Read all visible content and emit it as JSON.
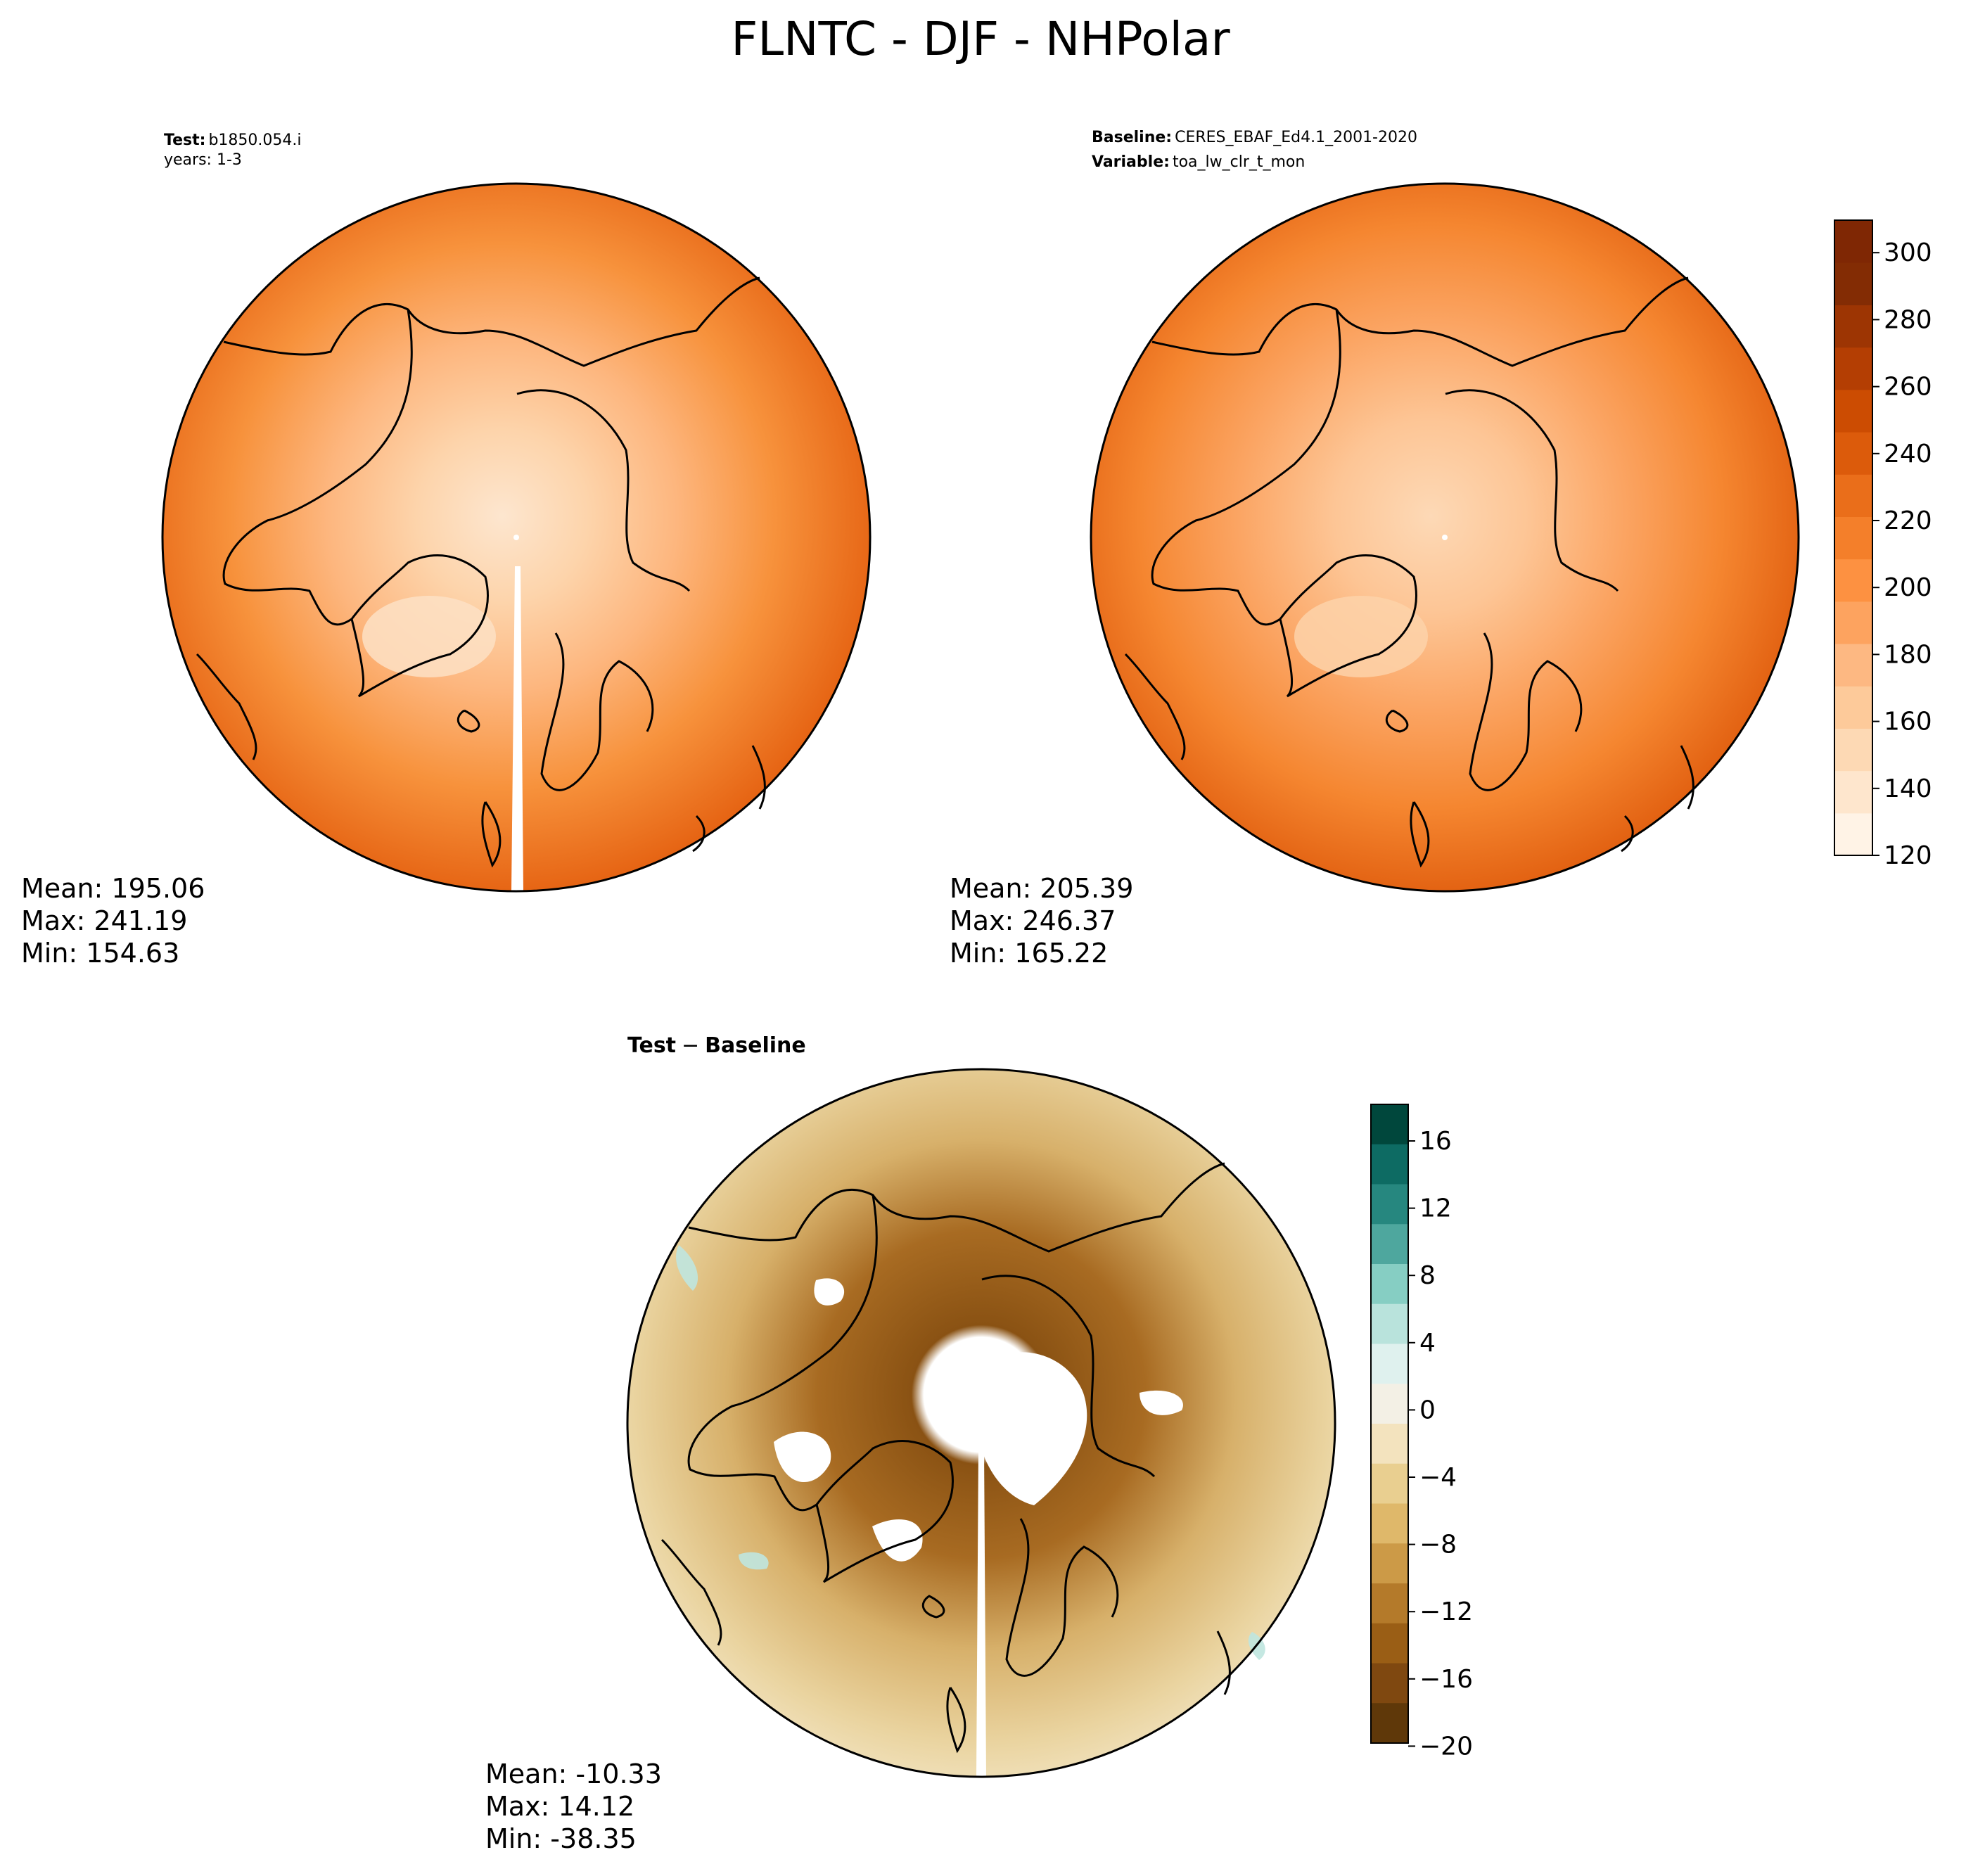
{
  "title": "FLNTC - DJF - NHPolar",
  "panels": {
    "test": {
      "header_key": "Test",
      "header_value": "b1850.054.i",
      "header_line2": "years: 1-3",
      "stats": {
        "mean": "Mean: 195.06",
        "max": "Max: 241.19",
        "min": "Min: 154.63"
      }
    },
    "baseline": {
      "header_key": "Baseline",
      "header_value": "CERES_EBAF_Ed4.1_2001-2020",
      "header2_key": "Variable",
      "header2_value": "toa_lw_clr_t_mon",
      "stats": {
        "mean": "Mean: 205.39",
        "max": "Max: 246.37",
        "min": "Min: 165.22"
      }
    },
    "diff": {
      "header_test": "Test",
      "header_minus": "−",
      "header_baseline": "Baseline",
      "stats": {
        "mean": "Mean: -10.33",
        "max": "Max: 14.12",
        "min": "Min: -38.35"
      }
    }
  },
  "colorbars": {
    "main": {
      "ticks": [
        "120",
        "140",
        "160",
        "180",
        "200",
        "220",
        "240",
        "260",
        "280",
        "300"
      ],
      "colors": [
        "#fff3e6",
        "#fee6cd",
        "#fdd9b4",
        "#fdca9a",
        "#fdb882",
        "#fda35f",
        "#fd9141",
        "#f47f2a",
        "#ea6e1a",
        "#dc5b0b",
        "#cc4c02",
        "#b43e03",
        "#9d3503",
        "#832c04",
        "#7f2704"
      ]
    },
    "diff": {
      "ticks": [
        "16",
        "12",
        "8",
        "4",
        "0",
        "−4",
        "−8",
        "−12",
        "−16",
        "−20"
      ],
      "colors": [
        "#00473c",
        "#0d6b63",
        "#26877f",
        "#4ea79e",
        "#86cec3",
        "#b9e3dc",
        "#dff1ee",
        "#f3f0e5",
        "#f3e3be",
        "#e9cf90",
        "#dfb86a",
        "#cc9a47",
        "#b47a2a",
        "#9a5e15",
        "#7f4810",
        "#5f3809"
      ]
    }
  },
  "chart_data": {
    "type": "heatmap",
    "title": "FLNTC - DJF - NHPolar",
    "projection": "north polar stereographic",
    "panels": [
      {
        "name": "Test",
        "case": "b1850.054.i",
        "years": "1-3",
        "mean": 195.06,
        "max": 241.19,
        "min": 154.63,
        "cbar_range": [
          120,
          310
        ],
        "cbar_step": 20
      },
      {
        "name": "Baseline",
        "case": "CERES_EBAF_Ed4.1_2001-2020",
        "variable": "toa_lw_clr_t_mon",
        "mean": 205.39,
        "max": 246.37,
        "min": 165.22,
        "cbar_range": [
          120,
          310
        ],
        "cbar_step": 20
      },
      {
        "name": "Test − Baseline",
        "mean": -10.33,
        "max": 14.12,
        "min": -38.35,
        "cbar_range": [
          -20,
          18
        ],
        "cbar_step": 4
      }
    ]
  }
}
